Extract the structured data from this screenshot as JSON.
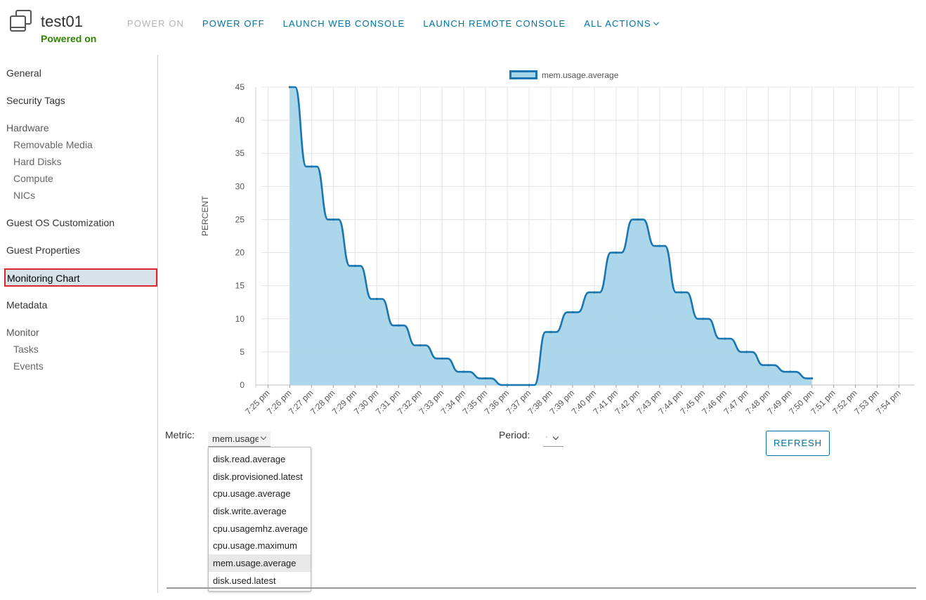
{
  "vm": {
    "name": "test01",
    "status": "Powered on"
  },
  "actions": [
    {
      "label": "POWER ON",
      "disabled": true
    },
    {
      "label": "POWER OFF",
      "disabled": false
    },
    {
      "label": "LAUNCH WEB CONSOLE",
      "disabled": false
    },
    {
      "label": "LAUNCH REMOTE CONSOLE",
      "disabled": false
    },
    {
      "label": "ALL ACTIONS",
      "disabled": false
    }
  ],
  "sidebar": {
    "general": "General",
    "security_tags": "Security Tags",
    "hardware": "Hardware",
    "removable_media": "Removable Media",
    "hard_disks": "Hard Disks",
    "compute": "Compute",
    "nics": "NICs",
    "guest_os": "Guest OS Customization",
    "guest_props": "Guest Properties",
    "monitoring_chart": "Monitoring Chart",
    "metadata": "Metadata",
    "monitor": "Monitor",
    "tasks": "Tasks",
    "events": "Events"
  },
  "controls": {
    "metric_label": "Metric:",
    "metric_value": "mem.usage.average",
    "period_label": "Period:",
    "period_value": "·",
    "refresh_label": "REFRESH",
    "metric_options": [
      "disk.read.average",
      "disk.provisioned.latest",
      "cpu.usage.average",
      "disk.write.average",
      "cpu.usagemhz.average",
      "cpu.usage.maximum",
      "mem.usage.average",
      "disk.used.latest"
    ],
    "selected_index": 6
  },
  "colors": {
    "accent": "#0072a3",
    "status_green": "#2f8400",
    "series_fill": "#a8d4e8",
    "series_line": "#1a76b0",
    "highlight_border": "#d9272e"
  },
  "chart_data": {
    "type": "area",
    "ylabel": "PERCENT",
    "ylim": [
      0,
      45
    ],
    "yticks": [
      0,
      5,
      10,
      15,
      20,
      25,
      30,
      35,
      40,
      45
    ],
    "x": [
      "7:25 pm",
      "7:26 pm",
      "7:27 pm",
      "7:28 pm",
      "7:29 pm",
      "7:30 pm",
      "7:31 pm",
      "7:32 pm",
      "7:33 pm",
      "7:34 pm",
      "7:35 pm",
      "7:36 pm",
      "7:37 pm",
      "7:38 pm",
      "7:39 pm",
      "7:40 pm",
      "7:41 pm",
      "7:42 pm",
      "7:43 pm",
      "7:44 pm",
      "7:45 pm",
      "7:46 pm",
      "7:47 pm",
      "7:48 pm",
      "7:49 pm",
      "7:50 pm",
      "7:51 pm",
      "7:52 pm",
      "7:53 pm",
      "7:54 pm"
    ],
    "legend": "top",
    "grid": true,
    "series": [
      {
        "name": "mem.usage.average",
        "values": [
          null,
          45,
          33,
          25,
          18,
          13,
          9,
          6,
          4,
          2,
          1,
          0,
          0,
          8,
          11,
          14,
          20,
          25,
          21,
          14,
          10,
          7,
          5,
          3,
          2,
          1,
          null,
          null,
          null,
          null
        ]
      }
    ]
  }
}
